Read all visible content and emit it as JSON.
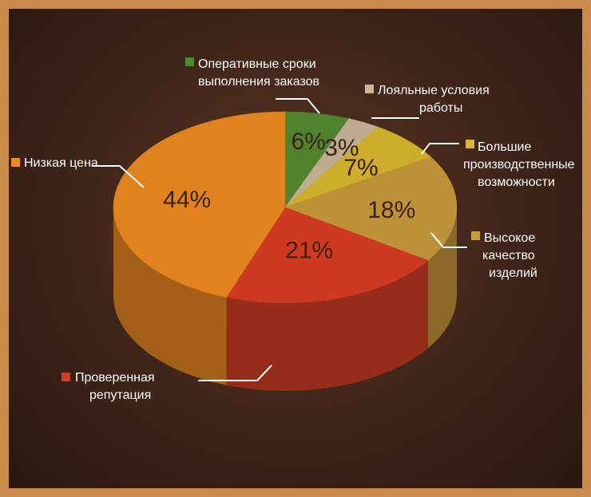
{
  "chart_data": {
    "type": "pie",
    "style": "3d",
    "categories": [
      "Оперативные сроки выполнения заказов",
      "Лояльные условия работы",
      "Большие производственные возможности",
      "Высокое качество изделий",
      "Проверенная репутация",
      "Низкая цена"
    ],
    "values": [
      6,
      3,
      7,
      18,
      21,
      44
    ],
    "value_labels": [
      "6%",
      "3%",
      "7%",
      "18%",
      "21%",
      "44%"
    ],
    "label_lines": [
      [
        "Оперативные сроки",
        "выполнения заказов"
      ],
      [
        "Лояльные условия",
        "работы"
      ],
      [
        "Большие",
        "производственные",
        "возможности"
      ],
      [
        "Высокое",
        "качество",
        "изделий"
      ],
      [
        "Проверенная",
        "репутация"
      ],
      [
        "Низкая цена"
      ]
    ],
    "colors": [
      "#4f8a2e",
      "#c9b79a",
      "#d8b82a",
      "#c79a3a",
      "#d83a22",
      "#ee8a1e"
    ],
    "title": "",
    "legend_position": "callouts"
  }
}
